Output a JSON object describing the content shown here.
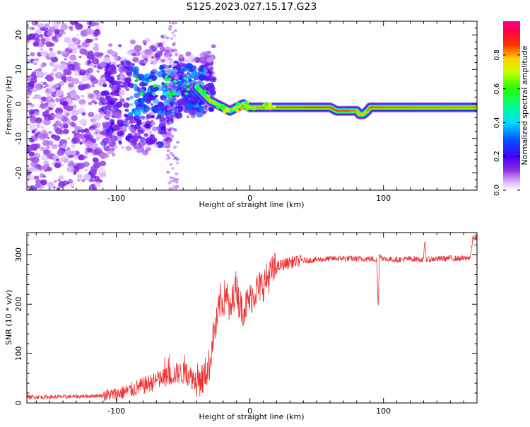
{
  "title": "S125.2023.027.15.17.G23",
  "colors": {
    "snr_line": "#ee3333",
    "axis": "#000000"
  },
  "chart_data": [
    {
      "type": "heatmap",
      "xlabel": "Height of straight line (km)",
      "ylabel": "Frequency (Hz)",
      "xlim": [
        -167,
        170
      ],
      "ylim": [
        -25,
        24
      ],
      "xticks": [
        -100,
        0,
        100
      ],
      "xtick_labels": [
        "-100",
        "0",
        "100"
      ],
      "yticks": [
        -20,
        -10,
        0,
        10,
        20
      ],
      "ytick_labels": [
        "-20",
        "-10",
        "0",
        "10",
        "20"
      ],
      "colorbar": {
        "label": "Normalized spectral amplitude",
        "range": [
          0,
          1
        ],
        "ticks": [
          0.0,
          0.2,
          0.4,
          0.6,
          0.8
        ],
        "tick_labels": [
          "0.0",
          "0.2",
          "0.4",
          "0.6",
          "0.8"
        ],
        "colormap": "rainbow (white-violet-blue-cyan-green-yellow-red-magenta)"
      },
      "ridge": {
        "x": [
          -40,
          -35,
          -30,
          -25,
          -20,
          -15,
          -10,
          -5,
          0,
          5,
          10,
          20,
          40,
          60,
          65,
          70,
          75,
          80,
          82,
          85,
          88,
          90,
          95,
          100,
          120,
          140,
          150,
          170
        ],
        "y": [
          5,
          3,
          1,
          0,
          -1,
          -2,
          -1,
          0,
          -1,
          -1,
          -1,
          -1,
          -1,
          -1,
          -2,
          -2,
          -2,
          -2,
          -3,
          -3,
          -2,
          -1,
          -1,
          -1,
          -1,
          -1,
          -1,
          -1
        ],
        "amplitude": [
          0.55,
          0.6,
          0.62,
          0.65,
          0.7,
          0.72,
          0.72,
          0.75,
          0.78,
          0.8,
          0.82,
          0.86,
          0.88,
          0.88,
          0.86,
          0.86,
          0.86,
          0.8,
          0.78,
          0.78,
          0.8,
          0.86,
          0.86,
          0.85,
          0.84,
          0.83,
          0.82,
          0.82
        ]
      }
    },
    {
      "type": "line",
      "xlabel": "Height of straight line (km)",
      "ylabel": "SNR (10 * v/v)",
      "xlim": [
        -167,
        170
      ],
      "ylim": [
        0,
        345
      ],
      "xticks": [
        -100,
        0,
        100
      ],
      "xtick_labels": [
        "-100",
        "0",
        "100"
      ],
      "yticks": [
        0,
        100,
        200,
        300
      ],
      "ytick_labels": [
        "0",
        "100",
        "200",
        "300"
      ],
      "series": [
        {
          "x": [
            -167,
            -150,
            -130,
            -110,
            -100,
            -90,
            -80,
            -70,
            -60,
            -55,
            -50,
            -45,
            -40,
            -35,
            -30,
            -28,
            -25,
            -22,
            -20,
            -18,
            -15,
            -12,
            -10,
            -8,
            -5,
            0,
            5,
            10,
            15,
            20,
            25,
            30,
            40,
            50,
            60,
            70,
            80,
            90,
            95,
            96,
            97,
            100,
            110,
            120,
            130,
            131,
            132,
            140,
            150,
            160,
            165,
            167,
            170
          ],
          "y": [
            12,
            12,
            13,
            15,
            18,
            25,
            35,
            45,
            55,
            60,
            60,
            55,
            45,
            50,
            80,
            130,
            160,
            210,
            200,
            230,
            180,
            220,
            240,
            200,
            190,
            210,
            230,
            240,
            260,
            275,
            280,
            285,
            288,
            290,
            292,
            293,
            292,
            292,
            290,
            188,
            300,
            292,
            290,
            292,
            290,
            330,
            290,
            292,
            293,
            292,
            295,
            335,
            332
          ]
        }
      ]
    }
  ]
}
